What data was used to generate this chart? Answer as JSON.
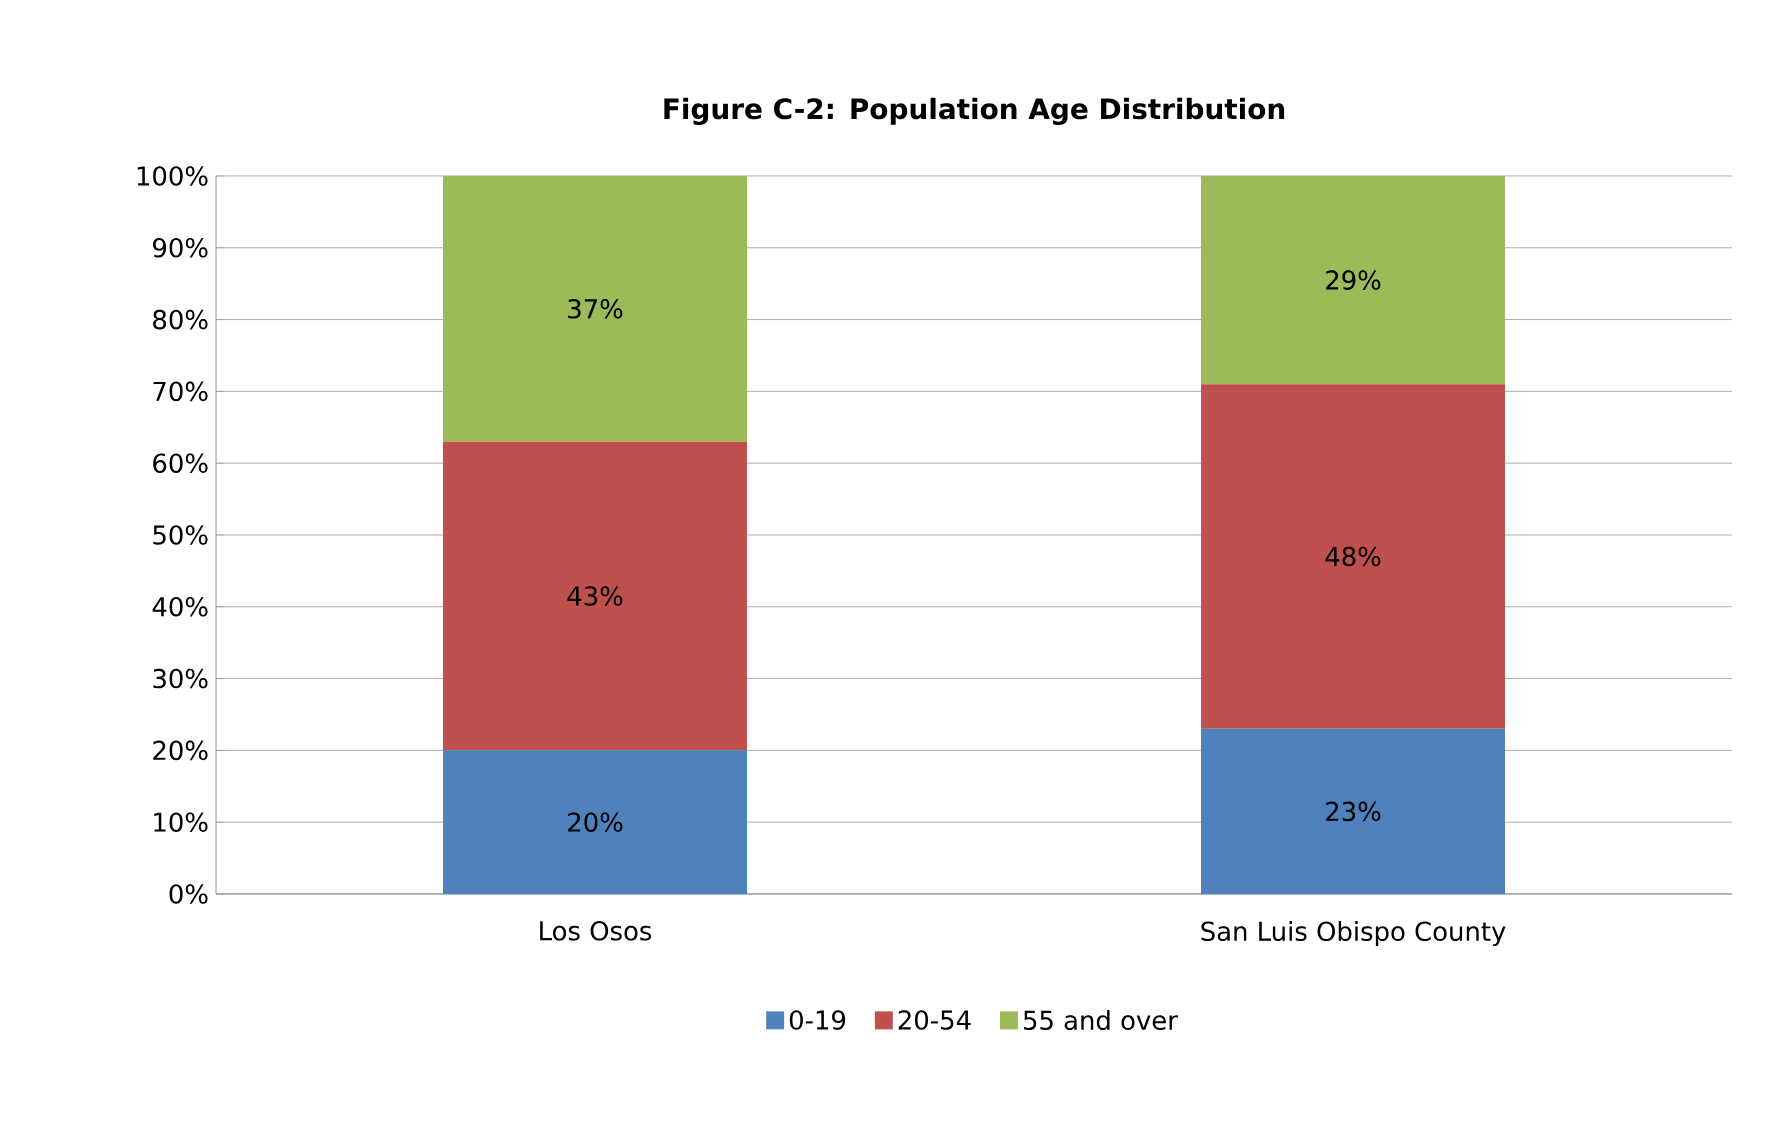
{
  "chart_data": {
    "type": "bar",
    "stacked": true,
    "title": "Figure C-2: Population Age Distribution",
    "categories": [
      "Los Osos",
      "San Luis Obispo County"
    ],
    "series": [
      {
        "name": "0-19",
        "color": "#4f81bd",
        "values": [
          20,
          23
        ],
        "value_labels": [
          "20%",
          "23%"
        ]
      },
      {
        "name": "20-54",
        "color": "#c0504d",
        "values": [
          43,
          48
        ],
        "value_labels": [
          "43%",
          "48%"
        ]
      },
      {
        "name": "55 and over",
        "color": "#9bbb59",
        "values": [
          37,
          29
        ],
        "value_labels": [
          "37%",
          "29%"
        ]
      }
    ],
    "ylim": [
      0,
      100
    ],
    "yticks": [
      {
        "value": 0,
        "label": "0%"
      },
      {
        "value": 10,
        "label": "10%"
      },
      {
        "value": 20,
        "label": "20%"
      },
      {
        "value": 30,
        "label": "30%"
      },
      {
        "value": 40,
        "label": "40%"
      },
      {
        "value": 50,
        "label": "50%"
      },
      {
        "value": 60,
        "label": "60%"
      },
      {
        "value": 70,
        "label": "70%"
      },
      {
        "value": 80,
        "label": "80%"
      },
      {
        "value": 90,
        "label": "90%"
      },
      {
        "value": 100,
        "label": "100%"
      }
    ],
    "grid": "y",
    "legend": "bottom"
  }
}
